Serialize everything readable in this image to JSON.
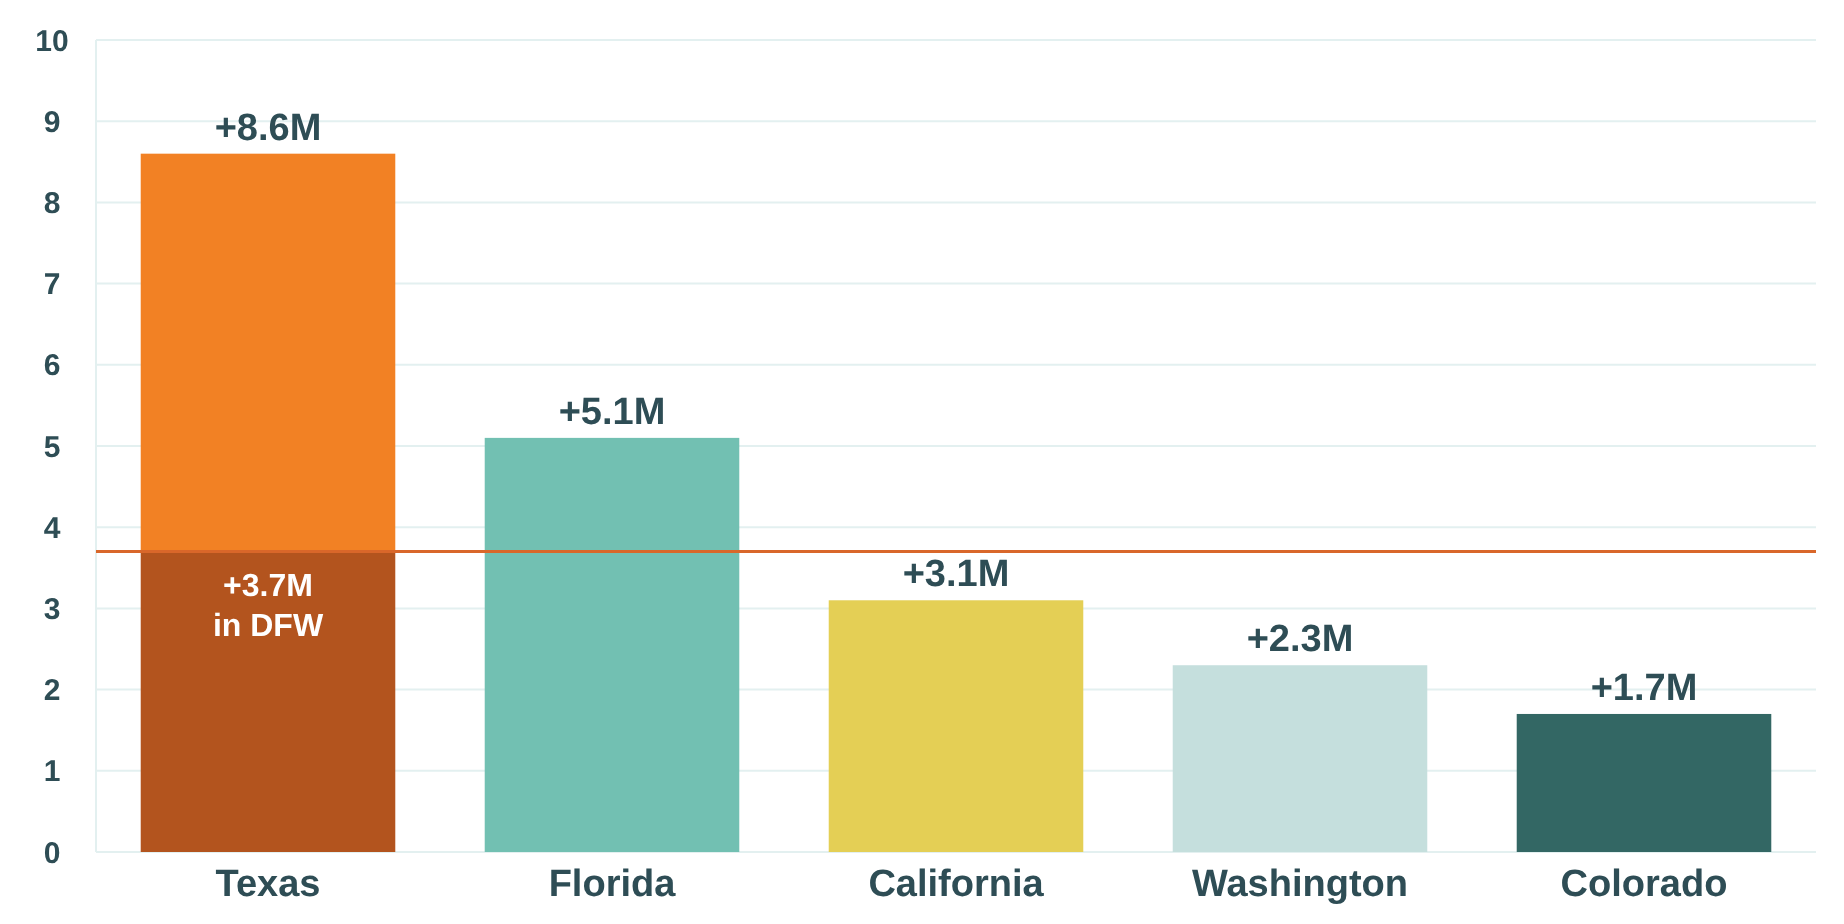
{
  "chart_data": {
    "type": "bar",
    "stacked": true,
    "categories": [
      "Texas",
      "Florida",
      "California",
      "Washington",
      "Colorado"
    ],
    "series": [
      {
        "values": [
          3.7,
          null,
          null,
          null,
          null
        ],
        "colors": [
          "#b3541e",
          null,
          null,
          null,
          null
        ],
        "value_labels": [
          "+3.7M in DFW",
          null,
          null,
          null,
          null
        ]
      },
      {
        "values": [
          4.9,
          5.1,
          3.1,
          2.3,
          1.7
        ],
        "colors": [
          "#f28124",
          "#72c0b2",
          "#e4cf55",
          "#c5dfdd",
          "#336764"
        ]
      }
    ],
    "totals": [
      "+8.6M",
      "+5.1M",
      "+3.1M",
      "+2.3M",
      "+1.7M"
    ],
    "ylim": [
      0,
      10
    ],
    "yticks": [
      0,
      1,
      2,
      3,
      4,
      5,
      6,
      7,
      8,
      9,
      10
    ],
    "grid": "y",
    "ref_lines": [
      {
        "axis": "y",
        "value": 3.7,
        "color": "#d9672a"
      }
    ]
  }
}
